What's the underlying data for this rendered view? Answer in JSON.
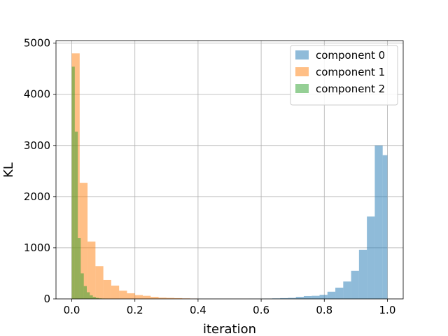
{
  "chart_data": {
    "type": "bar",
    "subtype": "overlapping-histogram",
    "title": "",
    "xlabel": "iteration",
    "ylabel": "KL",
    "xlim": [
      -0.05,
      1.05
    ],
    "ylim": [
      0,
      5050
    ],
    "xticks": [
      0.0,
      0.2,
      0.4,
      0.6,
      0.8,
      1.0
    ],
    "xtick_labels": [
      "0.0",
      "0.2",
      "0.4",
      "0.6",
      "0.8",
      "1.0"
    ],
    "yticks": [
      0,
      1000,
      2000,
      3000,
      4000,
      5000
    ],
    "ytick_labels": [
      "0",
      "1000",
      "2000",
      "3000",
      "4000",
      "5000"
    ],
    "grid": true,
    "legend_position": "top-right",
    "opacity": 0.5,
    "series": [
      {
        "name": "component 0",
        "color": "#1f77b4",
        "bin_edges": [
          0.56,
          0.585,
          0.61,
          0.635,
          0.66,
          0.685,
          0.71,
          0.735,
          0.76,
          0.785,
          0.81,
          0.835,
          0.86,
          0.885,
          0.91,
          0.935,
          0.96,
          0.985,
          1.0
        ],
        "values": [
          2,
          3,
          5,
          10,
          15,
          20,
          40,
          55,
          60,
          80,
          140,
          220,
          340,
          550,
          960,
          1610,
          3000,
          2810
        ]
      },
      {
        "name": "component 1",
        "color": "#ff7f0e",
        "bin_edges": [
          0.0,
          0.025,
          0.05,
          0.075,
          0.1,
          0.125,
          0.15,
          0.175,
          0.2,
          0.225,
          0.25,
          0.275,
          0.3,
          0.325,
          0.35,
          0.375,
          0.4
        ],
        "values": [
          4800,
          2270,
          1120,
          640,
          370,
          260,
          160,
          110,
          75,
          60,
          40,
          25,
          20,
          15,
          10,
          5
        ]
      },
      {
        "name": "component 2",
        "color": "#2ca02c",
        "bin_edges": [
          0.0,
          0.00952,
          0.01904,
          0.02856,
          0.03808,
          0.0476,
          0.05712,
          0.06664,
          0.07616,
          0.08568,
          0.0952,
          0.10472,
          0.11424
        ],
        "values": [
          4540,
          3270,
          1190,
          500,
          250,
          130,
          70,
          40,
          20,
          10,
          5,
          2
        ]
      }
    ]
  }
}
